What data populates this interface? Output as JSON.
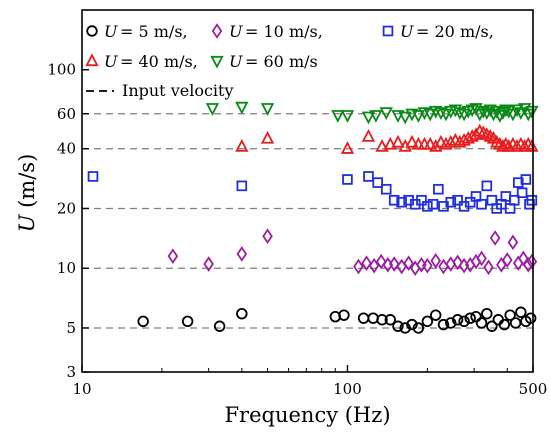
{
  "chart_data": {
    "type": "scatter",
    "xlabel": "Frequency (Hz)",
    "ylabel": "U (m/s)",
    "xscale": "log",
    "yscale": "log",
    "xlim": [
      10,
      500
    ],
    "ylim": [
      3,
      200
    ],
    "xticks": [
      {
        "value": 10,
        "label": "10"
      },
      {
        "value": 100,
        "label": "100"
      },
      {
        "value": 500,
        "label": "500"
      }
    ],
    "yticks": [
      {
        "value": 3,
        "label": "3"
      },
      {
        "value": 5,
        "label": "5"
      },
      {
        "value": 10,
        "label": "10"
      },
      {
        "value": 20,
        "label": "20"
      },
      {
        "value": 40,
        "label": "40"
      },
      {
        "value": 60,
        "label": "60"
      },
      {
        "value": 100,
        "label": "100"
      }
    ],
    "reference_lines": {
      "name": "Input velocity",
      "style": "dashed",
      "color": "#7f7f7f",
      "values": [
        5,
        10,
        20,
        40,
        60
      ]
    },
    "legend": {
      "placement": "top-left",
      "entries": [
        {
          "marker": "circle",
          "color": "#000000",
          "label": "= 5 m/s,"
        },
        {
          "marker": "diamond",
          "color": "#9b1fa0",
          "label": "= 10 m/s,"
        },
        {
          "marker": "square",
          "color": "#1f2fe0",
          "label": "= 20 m/s,"
        },
        {
          "marker": "triangle-up",
          "color": "#e61e1e",
          "label": "= 40 m/s,"
        },
        {
          "marker": "triangle-down",
          "color": "#0b8a1a",
          "label": "= 60 m/s"
        },
        {
          "marker": "dashed-line",
          "color": "#000000",
          "label": "Input velocity"
        }
      ]
    },
    "series": [
      {
        "nominal": 5,
        "marker": "circle",
        "color": "#000000",
        "x": [
          17,
          25,
          33,
          40,
          90,
          97,
          115,
          125,
          135,
          145,
          155,
          165,
          175,
          185,
          200,
          215,
          230,
          245,
          260,
          275,
          290,
          305,
          320,
          335,
          350,
          370,
          390,
          410,
          430,
          450,
          470,
          490
        ],
        "y": [
          5.4,
          5.4,
          5.1,
          5.9,
          5.7,
          5.8,
          5.6,
          5.6,
          5.5,
          5.5,
          5.1,
          5.0,
          5.2,
          5.0,
          5.4,
          5.8,
          5.2,
          5.3,
          5.5,
          5.4,
          5.6,
          5.7,
          5.3,
          5.9,
          5.1,
          5.5,
          5.2,
          5.8,
          5.3,
          6.0,
          5.4,
          5.6
        ]
      },
      {
        "nominal": 10,
        "marker": "diamond",
        "color": "#9b1fa0",
        "x": [
          22,
          30,
          40,
          50,
          110,
          118,
          126,
          134,
          142,
          150,
          160,
          170,
          180,
          190,
          200,
          215,
          230,
          245,
          260,
          275,
          290,
          305,
          320,
          340,
          360,
          380,
          400,
          420,
          440,
          460,
          480,
          495
        ],
        "y": [
          11.5,
          10.5,
          11.8,
          14.5,
          10.2,
          10.6,
          10.3,
          10.8,
          10.4,
          10.5,
          10.2,
          10.6,
          10.0,
          10.4,
          10.3,
          10.9,
          10.2,
          10.5,
          10.7,
          10.3,
          10.4,
          10.8,
          11.2,
          10.1,
          14.2,
          10.4,
          11.0,
          13.5,
          10.6,
          11.2,
          10.4,
          10.8
        ]
      },
      {
        "nominal": 20,
        "marker": "square",
        "color": "#1f2fe0",
        "x": [
          11,
          40,
          100,
          120,
          130,
          140,
          150,
          160,
          170,
          180,
          190,
          200,
          210,
          220,
          230,
          245,
          260,
          275,
          290,
          305,
          320,
          335,
          350,
          365,
          380,
          395,
          410,
          425,
          440,
          455,
          470,
          485,
          495
        ],
        "y": [
          29,
          26,
          28,
          29,
          27,
          25,
          22,
          21.5,
          22,
          21,
          22,
          20.5,
          21,
          25,
          20.5,
          21.5,
          22,
          20.5,
          21.5,
          23,
          21,
          26,
          22,
          20,
          21,
          23,
          20,
          22,
          27,
          24,
          28,
          21,
          22
        ]
      },
      {
        "nominal": 40,
        "marker": "triangle-up",
        "color": "#e61e1e",
        "x": [
          40,
          50,
          100,
          120,
          135,
          145,
          155,
          165,
          175,
          185,
          195,
          205,
          215,
          225,
          235,
          245,
          255,
          265,
          275,
          285,
          295,
          305,
          315,
          325,
          335,
          345,
          355,
          365,
          375,
          385,
          395,
          405,
          420,
          435,
          450,
          465,
          480,
          495
        ],
        "y": [
          41,
          45,
          40,
          46,
          41,
          42,
          43,
          41,
          43,
          42,
          42,
          42,
          41,
          43,
          42,
          43,
          44,
          43,
          44,
          45,
          46,
          47,
          49,
          48,
          47,
          46,
          45,
          43,
          42,
          41,
          42,
          41,
          42,
          41,
          42,
          41,
          42,
          41
        ]
      },
      {
        "nominal": 60,
        "marker": "triangle-down",
        "color": "#0b8a1a",
        "x": [
          31,
          40,
          50,
          92,
          100,
          120,
          128,
          140,
          155,
          165,
          175,
          185,
          195,
          205,
          215,
          225,
          235,
          245,
          255,
          265,
          275,
          285,
          295,
          305,
          315,
          325,
          335,
          345,
          355,
          365,
          375,
          385,
          395,
          405,
          420,
          435,
          450,
          465,
          480,
          495
        ],
        "y": [
          64,
          65,
          64,
          59,
          59,
          58,
          59,
          61,
          59,
          58,
          60,
          59,
          61,
          60,
          62,
          61,
          60,
          62,
          63,
          61,
          60,
          62,
          63,
          64,
          60,
          62,
          61,
          63,
          60,
          62,
          59,
          61,
          63,
          62,
          60,
          63,
          61,
          64,
          60,
          62
        ]
      }
    ]
  }
}
